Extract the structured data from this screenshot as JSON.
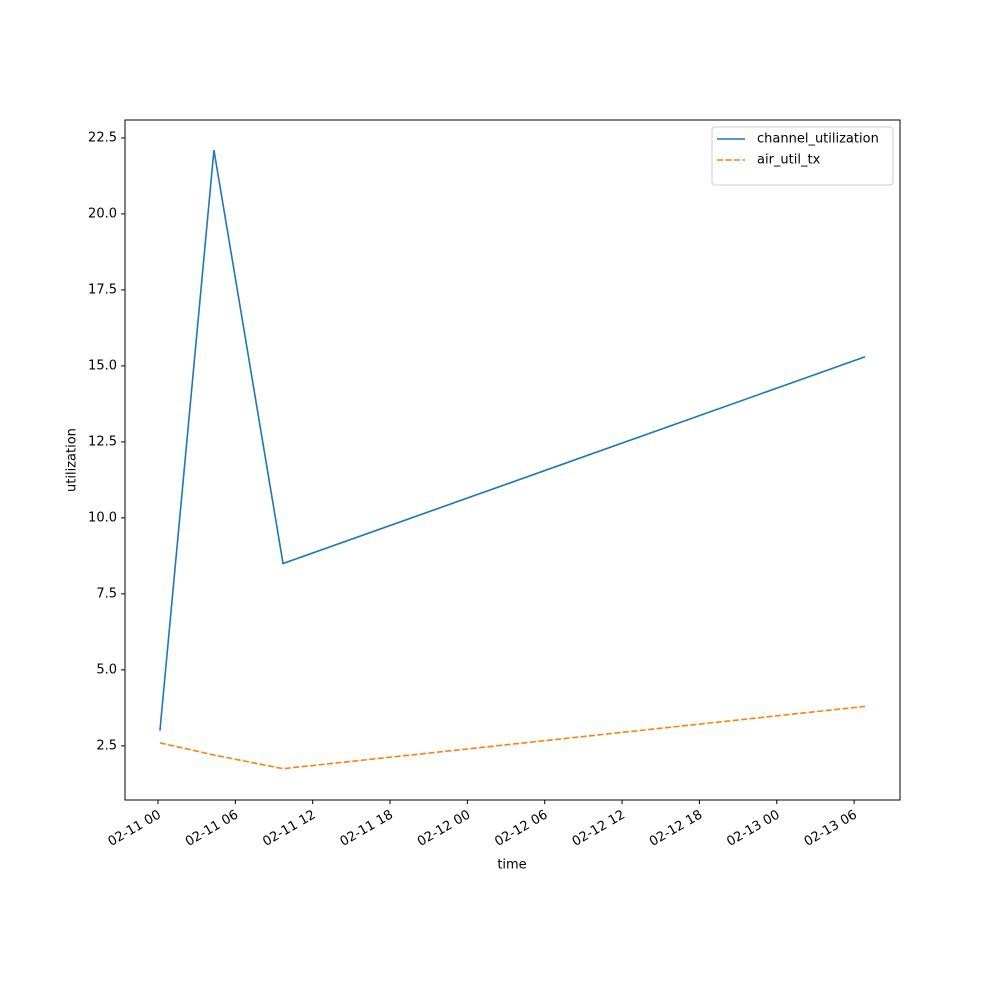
{
  "chart_data": {
    "type": "line",
    "xlabel": "time",
    "ylabel": "utilization",
    "x": [
      0.15,
      4.34,
      9.7,
      54.85
    ],
    "series": [
      {
        "name": "channel_utilization",
        "color": "#1f77b4",
        "dash": "solid",
        "values": [
          3.0,
          22.1,
          8.5,
          15.3
        ]
      },
      {
        "name": "air_util_tx",
        "color": "#ff7f0e",
        "dash": "dashed",
        "values": [
          2.6,
          2.2,
          1.75,
          3.8
        ]
      }
    ],
    "xlim": [
      -2.56,
      57.56
    ],
    "xticks": [
      {
        "value": 0,
        "label": "02-11 00"
      },
      {
        "value": 6,
        "label": "02-11 06"
      },
      {
        "value": 12,
        "label": "02-11 12"
      },
      {
        "value": 18,
        "label": "02-11 18"
      },
      {
        "value": 24,
        "label": "02-12 00"
      },
      {
        "value": 30,
        "label": "02-12 06"
      },
      {
        "value": 36,
        "label": "02-12 12"
      },
      {
        "value": 42,
        "label": "02-12 18"
      },
      {
        "value": 48,
        "label": "02-13 00"
      },
      {
        "value": 54,
        "label": "02-13 06"
      }
    ],
    "ylim": [
      0.72,
      23.09
    ],
    "yticks": [
      2.5,
      {
        "value": 5,
        "label": "5.0"
      },
      7.5,
      {
        "value": 10,
        "label": "10.0"
      },
      12.5,
      {
        "value": 15,
        "label": "15.0"
      },
      17.5,
      {
        "value": 20,
        "label": "20.0"
      },
      22.5
    ],
    "legend": "upper right"
  }
}
